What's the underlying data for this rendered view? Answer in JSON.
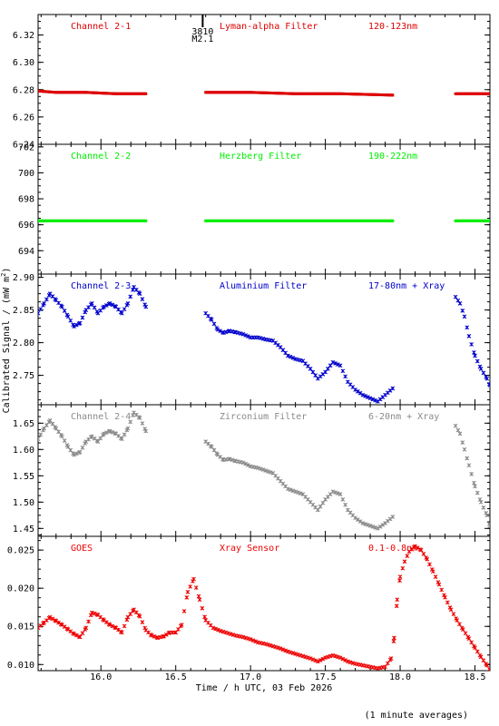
{
  "figure": {
    "ylabel_html_sup": "2",
    "ylabel_main": "Calibrated Signal / (mW m",
    "ylabel_end": ")",
    "xlabel": "Time / h UTC, 03 Feb 2026",
    "footnote": "(1 minute averages)",
    "flare_marker": {
      "time": "3810",
      "class": "M2.1",
      "x": 16.68
    }
  },
  "chart_data": [
    {
      "type": "scatter",
      "title": "Channel 2-1",
      "filter": "Lyman-alpha Filter",
      "band": "120-123nm",
      "color": "#dd0000",
      "xlim": [
        15.58,
        18.6
      ],
      "ylim": [
        6.24,
        6.335
      ],
      "yticks": [
        6.24,
        6.26,
        6.28,
        6.3,
        6.32
      ],
      "ytick_labels": [
        "6.24",
        "6.26",
        "6.28",
        "6.30",
        "6.32"
      ],
      "segments": [
        {
          "x": [
            15.58,
            15.7,
            15.9,
            16.1,
            16.3
          ],
          "y": [
            6.279,
            6.278,
            6.278,
            6.277,
            6.277
          ]
        },
        {
          "x": [
            16.7,
            17.0,
            17.3,
            17.6,
            17.95
          ],
          "y": [
            6.278,
            6.278,
            6.277,
            6.277,
            6.276
          ]
        },
        {
          "x": [
            18.37,
            18.6
          ],
          "y": [
            6.277,
            6.277
          ]
        }
      ]
    },
    {
      "type": "scatter",
      "title": "Channel 2-2",
      "filter": "Herzberg Filter",
      "band": "190-222nm",
      "color": "#00ee00",
      "xlim": [
        15.58,
        18.6
      ],
      "ylim": [
        692.2,
        702.2
      ],
      "yticks": [
        694,
        696,
        698,
        700,
        702
      ],
      "ytick_labels": [
        "694",
        "696",
        "698",
        "700",
        "702"
      ],
      "segments": [
        {
          "x": [
            15.58,
            15.9,
            16.3
          ],
          "y": [
            696.3,
            696.3,
            696.3
          ]
        },
        {
          "x": [
            16.7,
            17.3,
            17.95
          ],
          "y": [
            696.3,
            696.3,
            696.3
          ]
        },
        {
          "x": [
            18.37,
            18.6
          ],
          "y": [
            696.3,
            696.3
          ]
        }
      ]
    },
    {
      "type": "scatter",
      "title": "Channel 2-3",
      "filter": "Aluminium Filter",
      "band": "17-80nm + Xray",
      "color": "#0000cc",
      "xlim": [
        15.58,
        18.6
      ],
      "ylim": [
        2.705,
        2.905
      ],
      "yticks": [
        2.75,
        2.8,
        2.85,
        2.9
      ],
      "ytick_labels": [
        "2.75",
        "2.80",
        "2.85",
        "2.90"
      ],
      "segments": [
        {
          "x": [
            15.58,
            15.62,
            15.66,
            15.7,
            15.74,
            15.78,
            15.82,
            15.86,
            15.9,
            15.94,
            15.98,
            16.02,
            16.06,
            16.1,
            16.14,
            16.18,
            16.22,
            16.26,
            16.3
          ],
          "y": [
            2.845,
            2.86,
            2.875,
            2.865,
            2.855,
            2.84,
            2.825,
            2.83,
            2.85,
            2.86,
            2.845,
            2.855,
            2.86,
            2.855,
            2.845,
            2.86,
            2.885,
            2.875,
            2.855
          ]
        },
        {
          "x": [
            16.7,
            16.74,
            16.78,
            16.82,
            16.86,
            16.9,
            16.95,
            17.0,
            17.05,
            17.1,
            17.15,
            17.2,
            17.25,
            17.3,
            17.35,
            17.4,
            17.45,
            17.5,
            17.55,
            17.6,
            17.65,
            17.7,
            17.75,
            17.8,
            17.85,
            17.9,
            17.95
          ],
          "y": [
            2.845,
            2.835,
            2.82,
            2.815,
            2.818,
            2.816,
            2.813,
            2.808,
            2.808,
            2.805,
            2.803,
            2.793,
            2.78,
            2.775,
            2.772,
            2.76,
            2.745,
            2.755,
            2.77,
            2.765,
            2.74,
            2.728,
            2.72,
            2.715,
            2.71,
            2.72,
            2.73
          ]
        },
        {
          "x": [
            18.37,
            18.4,
            18.43,
            18.46,
            18.5,
            18.54,
            18.58,
            18.6
          ],
          "y": [
            2.87,
            2.86,
            2.84,
            2.81,
            2.78,
            2.76,
            2.745,
            2.735
          ]
        }
      ]
    },
    {
      "type": "scatter",
      "title": "Channel 2-4",
      "filter": "Zirconium Filter",
      "band": "6-20nm + Xray",
      "color": "#8a8a8a",
      "xlim": [
        15.58,
        18.6
      ],
      "ylim": [
        1.435,
        1.685
      ],
      "yticks": [
        1.45,
        1.5,
        1.55,
        1.6,
        1.65
      ],
      "ytick_labels": [
        "1.45",
        "1.50",
        "1.55",
        "1.60",
        "1.65"
      ],
      "segments": [
        {
          "x": [
            15.58,
            15.62,
            15.66,
            15.7,
            15.74,
            15.78,
            15.82,
            15.86,
            15.9,
            15.94,
            15.98,
            16.02,
            16.06,
            16.1,
            16.14,
            16.18,
            16.22,
            16.26,
            16.3
          ],
          "y": [
            1.62,
            1.64,
            1.655,
            1.64,
            1.625,
            1.605,
            1.59,
            1.595,
            1.615,
            1.625,
            1.615,
            1.63,
            1.635,
            1.63,
            1.62,
            1.64,
            1.67,
            1.66,
            1.635
          ]
        },
        {
          "x": [
            16.7,
            16.74,
            16.78,
            16.82,
            16.86,
            16.9,
            16.95,
            17.0,
            17.05,
            17.1,
            17.15,
            17.2,
            17.25,
            17.3,
            17.35,
            17.4,
            17.45,
            17.5,
            17.55,
            17.6,
            17.65,
            17.7,
            17.75,
            17.8,
            17.85,
            17.9,
            17.95
          ],
          "y": [
            1.615,
            1.605,
            1.59,
            1.58,
            1.582,
            1.578,
            1.575,
            1.568,
            1.565,
            1.56,
            1.555,
            1.54,
            1.525,
            1.52,
            1.515,
            1.5,
            1.485,
            1.505,
            1.52,
            1.515,
            1.485,
            1.47,
            1.46,
            1.455,
            1.45,
            1.46,
            1.472
          ]
        },
        {
          "x": [
            18.37,
            18.4,
            18.43,
            18.46,
            18.5,
            18.54,
            18.58,
            18.6
          ],
          "y": [
            1.645,
            1.63,
            1.6,
            1.57,
            1.53,
            1.5,
            1.475,
            1.455
          ]
        }
      ]
    },
    {
      "type": "scatter",
      "title": "GOES",
      "filter": "Xray Sensor",
      "band": "0.1-0.8nm",
      "color": "#ee0000",
      "xlim": [
        15.58,
        18.6
      ],
      "ylim": [
        0.0092,
        0.0268
      ],
      "yticks": [
        0.01,
        0.015,
        0.02,
        0.025
      ],
      "ytick_labels": [
        "0.010",
        "0.015",
        "0.020",
        "0.025"
      ],
      "segments": [
        {
          "x": [
            15.58,
            15.62,
            15.66,
            15.7,
            15.74,
            15.78,
            15.82,
            15.86,
            15.9,
            15.94,
            15.98,
            16.02,
            16.06,
            16.1,
            16.14,
            16.18,
            16.22,
            16.26,
            16.3,
            16.34,
            16.38,
            16.42,
            16.46,
            16.5,
            16.54,
            16.58,
            16.62,
            16.66,
            16.7,
            16.75,
            16.8,
            16.85,
            16.9,
            16.95,
            17.0,
            17.05,
            17.1,
            17.15,
            17.2,
            17.25,
            17.3,
            17.35,
            17.4,
            17.45,
            17.5,
            17.55,
            17.6,
            17.65,
            17.7,
            17.75,
            17.8,
            17.85,
            17.9,
            17.94,
            17.96,
            17.98,
            18.0,
            18.03,
            18.06,
            18.1,
            18.14,
            18.18,
            18.22,
            18.26,
            18.3,
            18.34,
            18.38,
            18.42,
            18.46,
            18.5,
            18.54,
            18.58,
            18.6
          ],
          "y": [
            0.0148,
            0.0155,
            0.0162,
            0.0157,
            0.0152,
            0.0146,
            0.014,
            0.0136,
            0.0148,
            0.0168,
            0.0165,
            0.0158,
            0.0152,
            0.0148,
            0.0142,
            0.0162,
            0.0172,
            0.0163,
            0.0145,
            0.0138,
            0.0135,
            0.0137,
            0.0142,
            0.0142,
            0.0152,
            0.0195,
            0.0212,
            0.0185,
            0.0158,
            0.0148,
            0.0144,
            0.0141,
            0.0138,
            0.0136,
            0.0133,
            0.0129,
            0.0127,
            0.0124,
            0.0121,
            0.0117,
            0.0114,
            0.0111,
            0.0108,
            0.0104,
            0.0109,
            0.0112,
            0.0109,
            0.0104,
            0.0101,
            0.0099,
            0.0097,
            0.0095,
            0.0097,
            0.0108,
            0.0135,
            0.0185,
            0.0215,
            0.0235,
            0.0248,
            0.0255,
            0.025,
            0.0238,
            0.0222,
            0.0205,
            0.0188,
            0.0172,
            0.0158,
            0.0146,
            0.0134,
            0.0122,
            0.011,
            0.0099,
            0.0093
          ]
        }
      ]
    }
  ],
  "xticks": [
    16.0,
    16.5,
    17.0,
    17.5,
    18.0,
    18.5
  ],
  "xtick_labels": [
    "16.0",
    "16.5",
    "17.0",
    "17.5",
    "18.0",
    "18.5"
  ]
}
